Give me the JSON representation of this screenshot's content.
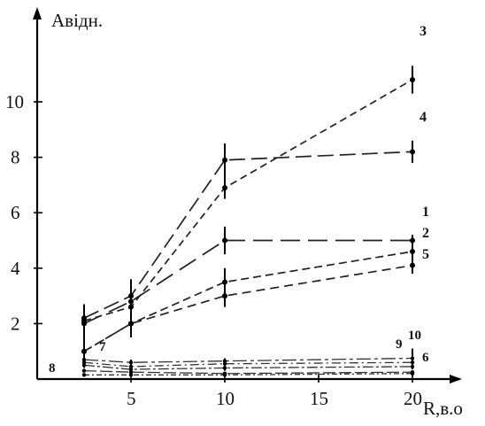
{
  "chart_data": {
    "type": "line",
    "title": "",
    "xlabel": "R,в.о",
    "ylabel": "Авідн.",
    "xlim": [
      0,
      21.5
    ],
    "ylim": [
      0,
      11.5
    ],
    "xticks": [
      5,
      10,
      15,
      20
    ],
    "yticks": [
      2,
      4,
      6,
      8,
      10
    ],
    "grid": false,
    "legend": "none",
    "series": [
      {
        "name": "1",
        "x": [
          2.5,
          5,
          10,
          20
        ],
        "y": [
          2.0,
          2.8,
          5.0,
          5.0
        ],
        "err": [
          0.7,
          0.8,
          0.5,
          0.2
        ],
        "dash": "22 9",
        "style": "main"
      },
      {
        "name": "2",
        "x": [
          2.5,
          5,
          10,
          20
        ],
        "y": [
          1.0,
          2.0,
          3.5,
          4.6
        ],
        "err": [
          0.3,
          0.4,
          0.5,
          0.3
        ],
        "dash": "9 5",
        "style": "main"
      },
      {
        "name": "3",
        "x": [
          2.5,
          5,
          10,
          20
        ],
        "y": [
          2.1,
          2.6,
          6.9,
          10.8
        ],
        "err": [
          0.5,
          0.6,
          0.4,
          0.5
        ],
        "dash": "8 5",
        "style": "main"
      },
      {
        "name": "4",
        "x": [
          2.5,
          5,
          10,
          20
        ],
        "y": [
          2.2,
          3.0,
          7.9,
          8.2
        ],
        "err": [
          0.5,
          0.6,
          0.6,
          0.4
        ],
        "dash": "18 7",
        "style": "main"
      },
      {
        "name": "5",
        "x": [
          2.5,
          5,
          10,
          20
        ],
        "y": [
          1.0,
          2.0,
          3.0,
          4.1
        ],
        "err": [
          0.3,
          0.5,
          0.4,
          0.3
        ],
        "dash": "10 6",
        "style": "main"
      },
      {
        "name": "6",
        "x": [
          2.5,
          5,
          10,
          20
        ],
        "y": [
          0.5,
          0.35,
          0.4,
          0.45
        ],
        "err": [
          0.1,
          0.1,
          0.1,
          0.1
        ],
        "dash": "12 3 3 3",
        "style": "low"
      },
      {
        "name": "7",
        "x": [
          2.5,
          5,
          10,
          20
        ],
        "y": [
          0.6,
          0.45,
          0.55,
          0.6
        ],
        "err": [
          0.1,
          0.1,
          0.1,
          0.2
        ],
        "dash": "10 4 2 4",
        "style": "low"
      },
      {
        "name": "8",
        "x": [
          2.5,
          5,
          10,
          20
        ],
        "y": [
          0.3,
          0.25,
          0.2,
          0.25
        ],
        "err": [
          0.0,
          0.0,
          0.0,
          0.0
        ],
        "dash": "14 4",
        "style": "low"
      },
      {
        "name": "9",
        "x": [
          2.5,
          5,
          10,
          20
        ],
        "y": [
          0.15,
          0.15,
          0.15,
          0.2
        ],
        "err": [
          0.0,
          0.0,
          0.0,
          0.1
        ],
        "dash": "6 3 2 3",
        "style": "low"
      },
      {
        "name": "10",
        "x": [
          2.5,
          5,
          10,
          20
        ],
        "y": [
          0.7,
          0.6,
          0.65,
          0.75
        ],
        "err": [
          0.1,
          0.1,
          0.1,
          0.35
        ],
        "dash": "16 4 4 4",
        "style": "low"
      }
    ]
  }
}
